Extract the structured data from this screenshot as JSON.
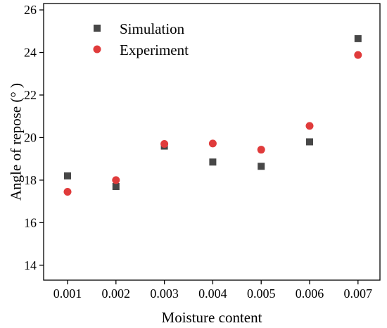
{
  "chart_data": {
    "type": "scatter",
    "xlabel": "Moisture content",
    "ylabel": "Angle of repose (° )",
    "x_categories": [
      "0.001",
      "0.002",
      "0.003",
      "0.004",
      "0.005",
      "0.006",
      "0.007"
    ],
    "ylim": [
      13.3,
      26.3
    ],
    "yticks": [
      "14",
      "16",
      "18",
      "20",
      "22",
      "24",
      "26"
    ],
    "grid": false,
    "legend_position": "top-left",
    "series": [
      {
        "name": "Simulation",
        "marker": "square",
        "color": "#474747",
        "values": [
          18.2,
          17.7,
          19.6,
          18.85,
          18.65,
          19.8,
          24.65
        ]
      },
      {
        "name": "Experiment",
        "marker": "circle",
        "color": "#e03b3b",
        "values": [
          17.45,
          18.0,
          19.7,
          19.72,
          19.43,
          20.55,
          23.88
        ]
      }
    ]
  }
}
